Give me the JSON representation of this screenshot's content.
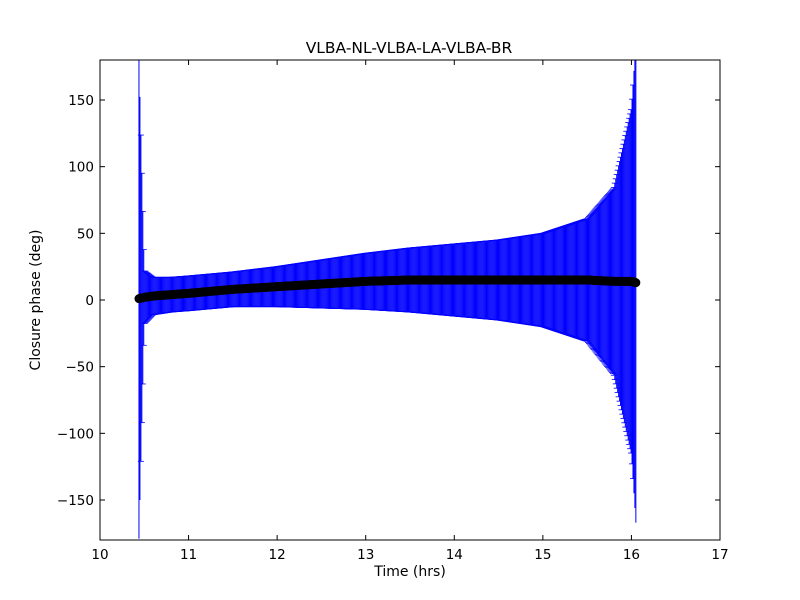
{
  "chart_data": {
    "type": "scatter",
    "title": "VLBA-NL-VLBA-LA-VLBA-BR",
    "xlabel": "Time (hrs)",
    "ylabel": "Closure phase (deg)",
    "xlim": [
      10,
      17
    ],
    "ylim": [
      -180,
      180
    ],
    "x_ticks": [
      "10",
      "11",
      "12",
      "13",
      "14",
      "15",
      "16",
      "17"
    ],
    "y_ticks": [
      "−150",
      "−100",
      "−50",
      "0",
      "50",
      "100",
      "150"
    ],
    "y_tick_values": [
      -150,
      -100,
      -50,
      0,
      50,
      100,
      150
    ],
    "x_tick_values": [
      10,
      11,
      12,
      13,
      14,
      15,
      16,
      17
    ],
    "grid": false,
    "time_range": [
      10.44,
      16.05
    ],
    "series": [
      {
        "marker": "circle",
        "color": "#000000",
        "errorbar_color": "#0000ff",
        "x": [
          10.44,
          10.5,
          10.6,
          10.8,
          11.0,
          11.5,
          12.0,
          12.5,
          13.0,
          13.5,
          14.0,
          14.5,
          15.0,
          15.5,
          15.8,
          16.0,
          16.05
        ],
        "y": [
          1,
          2,
          3,
          4,
          5,
          8,
          10,
          12,
          14,
          15,
          15,
          15,
          15,
          15,
          14,
          14,
          13
        ],
        "err": [
          180,
          20,
          14,
          13,
          13,
          13,
          15,
          18,
          21,
          24,
          27,
          30,
          35,
          46,
          70,
          130,
          180
        ]
      }
    ]
  }
}
